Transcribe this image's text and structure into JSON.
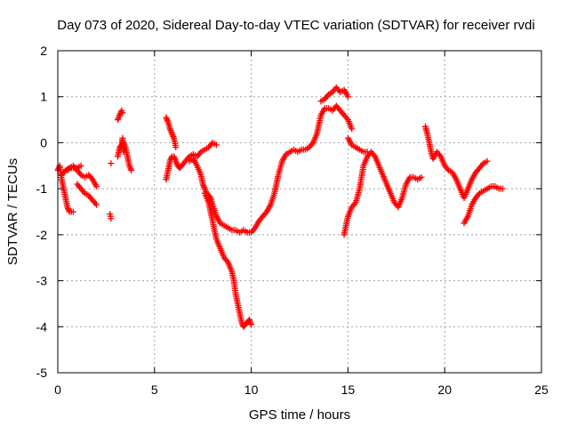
{
  "chart_data": {
    "type": "scatter",
    "title": "Day 073 of 2020, Sidereal Day-to-day VTEC variation (SDTVAR) for receiver rvdi",
    "xlabel": "GPS time / hours",
    "ylabel": "SDTVAR / TECUs",
    "xlim": [
      0,
      25
    ],
    "ylim": [
      -5,
      2
    ],
    "x_ticks": [
      "0",
      "5",
      "10",
      "15",
      "20",
      "25"
    ],
    "y_ticks": [
      "2",
      "1",
      "0",
      "-1",
      "-2",
      "-3",
      "-4",
      "-5"
    ],
    "grid": true,
    "marker": "+",
    "series": [
      {
        "name": "SDTVAR",
        "color": "#ff0000",
        "segments": [
          [
            [
              0.0,
              -0.6
            ],
            [
              0.1,
              -0.5
            ],
            [
              0.2,
              -0.8
            ],
            [
              0.3,
              -1.0
            ],
            [
              0.4,
              -1.2
            ],
            [
              0.5,
              -1.4
            ],
            [
              0.6,
              -1.5
            ],
            [
              0.8,
              -1.5
            ]
          ],
          [
            [
              0.2,
              -0.7
            ],
            [
              0.4,
              -0.6
            ],
            [
              0.6,
              -0.55
            ],
            [
              0.8,
              -0.5
            ],
            [
              1.0,
              -0.6
            ],
            [
              1.2,
              -0.7
            ],
            [
              1.4,
              -0.75
            ],
            [
              1.6,
              -0.7
            ],
            [
              1.8,
              -0.8
            ],
            [
              2.0,
              -0.95
            ]
          ],
          [
            [
              1.0,
              -0.9
            ],
            [
              1.2,
              -1.0
            ],
            [
              1.4,
              -1.1
            ],
            [
              1.6,
              -1.15
            ],
            [
              1.8,
              -1.25
            ],
            [
              2.0,
              -1.35
            ]
          ],
          [
            [
              2.7,
              -1.55
            ],
            [
              2.75,
              -1.65
            ]
          ],
          [
            [
              2.75,
              -0.45
            ]
          ],
          [
            [
              3.1,
              -0.3
            ],
            [
              3.2,
              -0.1
            ],
            [
              3.3,
              -0.05
            ],
            [
              3.35,
              0.1
            ],
            [
              3.4,
              -0.2
            ]
          ],
          [
            [
              3.1,
              0.5
            ],
            [
              3.2,
              0.6
            ],
            [
              3.3,
              0.7
            ],
            [
              3.35,
              0.65
            ]
          ],
          [
            [
              3.4,
              0.0
            ],
            [
              3.5,
              -0.1
            ],
            [
              3.6,
              -0.3
            ],
            [
              3.7,
              -0.5
            ],
            [
              3.8,
              -0.6
            ]
          ],
          [
            [
              5.6,
              0.55
            ],
            [
              5.7,
              0.45
            ],
            [
              5.8,
              0.3
            ],
            [
              5.9,
              0.2
            ],
            [
              6.0,
              0.1
            ],
            [
              6.1,
              -0.1
            ]
          ],
          [
            [
              5.6,
              -0.8
            ],
            [
              5.7,
              -0.6
            ],
            [
              5.8,
              -0.4
            ],
            [
              5.9,
              -0.3
            ],
            [
              6.0,
              -0.3
            ],
            [
              6.1,
              -0.4
            ],
            [
              6.2,
              -0.5
            ],
            [
              6.3,
              -0.55
            ],
            [
              6.4,
              -0.5
            ],
            [
              6.6,
              -0.4
            ],
            [
              6.8,
              -0.3
            ],
            [
              7.0,
              -0.25
            ],
            [
              7.2,
              -0.3
            ],
            [
              7.4,
              -0.2
            ],
            [
              7.6,
              -0.15
            ],
            [
              7.8,
              -0.1
            ],
            [
              8.0,
              0.0
            ],
            [
              8.2,
              -0.05
            ]
          ],
          [
            [
              6.8,
              -0.4
            ],
            [
              7.0,
              -0.35
            ],
            [
              7.2,
              -0.5
            ],
            [
              7.4,
              -0.7
            ],
            [
              7.5,
              -0.9
            ],
            [
              7.6,
              -1.0
            ],
            [
              7.7,
              -1.1
            ],
            [
              7.8,
              -1.15
            ],
            [
              7.9,
              -1.2
            ],
            [
              8.0,
              -1.35
            ],
            [
              8.2,
              -1.6
            ],
            [
              8.4,
              -1.75
            ],
            [
              8.6,
              -1.8
            ],
            [
              8.8,
              -1.85
            ],
            [
              9.0,
              -1.9
            ],
            [
              9.2,
              -1.9
            ],
            [
              9.4,
              -1.95
            ],
            [
              9.6,
              -1.9
            ],
            [
              9.8,
              -1.95
            ],
            [
              10.0,
              -1.95
            ],
            [
              10.2,
              -1.85
            ],
            [
              10.4,
              -1.7
            ],
            [
              10.6,
              -1.6
            ],
            [
              10.8,
              -1.5
            ],
            [
              11.0,
              -1.35
            ],
            [
              11.2,
              -1.1
            ],
            [
              11.4,
              -0.7
            ],
            [
              11.6,
              -0.4
            ],
            [
              11.8,
              -0.25
            ],
            [
              12.0,
              -0.2
            ],
            [
              12.2,
              -0.15
            ],
            [
              12.4,
              -0.2
            ],
            [
              12.6,
              -0.15
            ],
            [
              12.8,
              -0.15
            ],
            [
              13.0,
              -0.1
            ],
            [
              13.2,
              0.0
            ],
            [
              13.4,
              0.2
            ],
            [
              13.6,
              0.6
            ],
            [
              13.8,
              0.75
            ],
            [
              14.0,
              0.75
            ],
            [
              14.2,
              0.7
            ],
            [
              14.4,
              0.8
            ],
            [
              14.6,
              0.7
            ],
            [
              14.8,
              0.6
            ],
            [
              15.0,
              0.5
            ],
            [
              15.2,
              0.3
            ]
          ],
          [
            [
              7.6,
              -1.1
            ],
            [
              7.8,
              -1.3
            ],
            [
              7.9,
              -1.5
            ],
            [
              8.0,
              -1.7
            ],
            [
              8.1,
              -1.9
            ],
            [
              8.2,
              -2.1
            ],
            [
              8.4,
              -2.3
            ],
            [
              8.6,
              -2.5
            ],
            [
              8.8,
              -2.6
            ],
            [
              9.0,
              -2.8
            ],
            [
              9.1,
              -3.0
            ],
            [
              9.2,
              -3.3
            ],
            [
              9.3,
              -3.5
            ],
            [
              9.4,
              -3.7
            ],
            [
              9.5,
              -3.9
            ],
            [
              9.6,
              -4.0
            ],
            [
              9.7,
              -3.95
            ],
            [
              9.8,
              -3.9
            ],
            [
              9.9,
              -3.85
            ],
            [
              10.0,
              -3.95
            ]
          ],
          [
            [
              13.6,
              0.9
            ],
            [
              13.8,
              0.95
            ],
            [
              14.0,
              1.05
            ],
            [
              14.2,
              1.1
            ],
            [
              14.4,
              1.2
            ],
            [
              14.6,
              1.1
            ],
            [
              14.8,
              1.15
            ],
            [
              15.0,
              1.0
            ]
          ],
          [
            [
              14.8,
              -2.0
            ],
            [
              14.9,
              -1.8
            ],
            [
              15.0,
              -1.6
            ],
            [
              15.2,
              -1.4
            ],
            [
              15.4,
              -1.3
            ],
            [
              15.6,
              -1.0
            ],
            [
              15.8,
              -0.5
            ],
            [
              16.0,
              -0.3
            ],
            [
              16.2,
              -0.2
            ],
            [
              16.4,
              -0.3
            ],
            [
              16.6,
              -0.5
            ],
            [
              16.8,
              -0.7
            ],
            [
              17.0,
              -0.9
            ],
            [
              17.2,
              -1.1
            ],
            [
              17.4,
              -1.3
            ],
            [
              17.6,
              -1.4
            ],
            [
              17.8,
              -1.2
            ],
            [
              18.0,
              -0.9
            ],
            [
              18.2,
              -0.75
            ],
            [
              18.4,
              -0.75
            ],
            [
              18.6,
              -0.8
            ],
            [
              18.8,
              -0.75
            ]
          ],
          [
            [
              15.0,
              0.1
            ],
            [
              15.2,
              -0.05
            ],
            [
              15.4,
              -0.1
            ],
            [
              15.6,
              -0.15
            ],
            [
              15.8,
              -0.2
            ],
            [
              16.0,
              -0.2
            ]
          ],
          [
            [
              19.0,
              0.35
            ],
            [
              19.1,
              0.2
            ],
            [
              19.2,
              0.0
            ],
            [
              19.3,
              -0.2
            ],
            [
              19.4,
              -0.35
            ],
            [
              19.6,
              -0.2
            ],
            [
              19.8,
              -0.3
            ],
            [
              20.0,
              -0.5
            ],
            [
              20.2,
              -0.6
            ],
            [
              20.4,
              -0.65
            ],
            [
              20.6,
              -0.8
            ],
            [
              20.8,
              -1.0
            ],
            [
              21.0,
              -1.2
            ],
            [
              21.2,
              -1.0
            ],
            [
              21.4,
              -0.8
            ],
            [
              21.6,
              -0.65
            ],
            [
              21.8,
              -0.55
            ],
            [
              22.0,
              -0.45
            ],
            [
              22.2,
              -0.4
            ]
          ],
          [
            [
              21.0,
              -1.75
            ],
            [
              21.2,
              -1.6
            ],
            [
              21.4,
              -1.35
            ],
            [
              21.6,
              -1.2
            ],
            [
              21.8,
              -1.1
            ],
            [
              22.0,
              -1.05
            ],
            [
              22.2,
              -1.0
            ],
            [
              22.4,
              -0.95
            ],
            [
              22.6,
              -0.95
            ],
            [
              22.8,
              -1.0
            ],
            [
              23.0,
              -1.0
            ]
          ],
          [
            [
              0.5,
              -0.6
            ],
            [
              0.6,
              -0.55
            ],
            [
              1.0,
              -0.55
            ],
            [
              1.2,
              -0.5
            ]
          ]
        ]
      }
    ]
  }
}
